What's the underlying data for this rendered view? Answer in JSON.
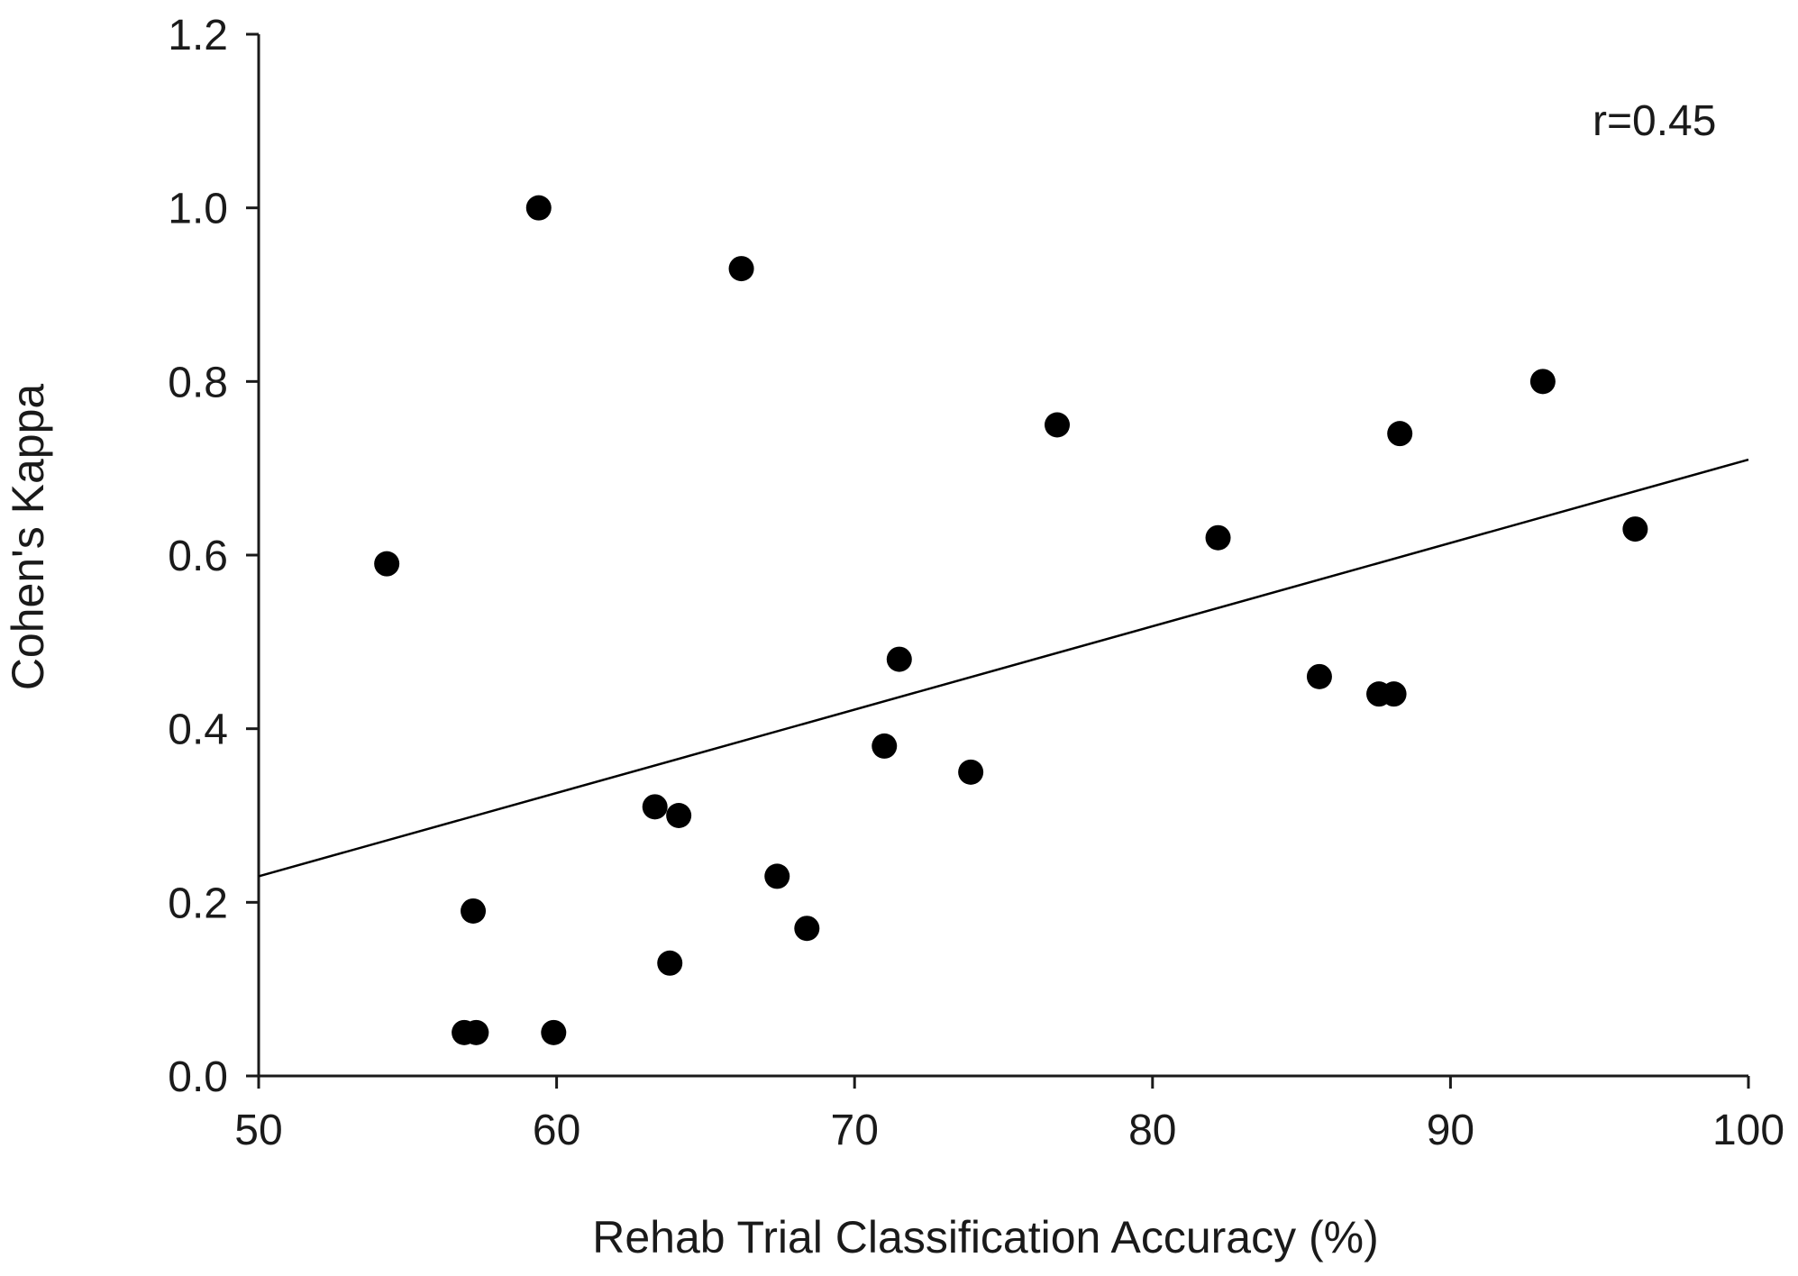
{
  "chart_data": {
    "type": "scatter",
    "title": "",
    "xlabel": "Rehab Trial Classification Accuracy (%)",
    "ylabel": "Cohen's Kappa",
    "xlim": [
      50,
      100
    ],
    "ylim": [
      0,
      1.2
    ],
    "x_ticks": [
      "50",
      "60",
      "70",
      "80",
      "90",
      "100"
    ],
    "y_ticks": [
      "0.0",
      "0.2",
      "0.4",
      "0.6",
      "0.8",
      "1.0",
      "1.2"
    ],
    "grid": false,
    "legend": "none",
    "annotation": "r=0.45",
    "marker_color": "#000000",
    "series": [
      {
        "points": [
          {
            "x": 54.3,
            "y": 0.59
          },
          {
            "x": 56.9,
            "y": 0.05
          },
          {
            "x": 57.3,
            "y": 0.05
          },
          {
            "x": 57.2,
            "y": 0.19
          },
          {
            "x": 59.4,
            "y": 1.0
          },
          {
            "x": 59.9,
            "y": 0.05
          },
          {
            "x": 63.3,
            "y": 0.31
          },
          {
            "x": 63.8,
            "y": 0.13
          },
          {
            "x": 64.1,
            "y": 0.3
          },
          {
            "x": 66.2,
            "y": 0.93
          },
          {
            "x": 67.4,
            "y": 0.23
          },
          {
            "x": 68.4,
            "y": 0.17
          },
          {
            "x": 71.0,
            "y": 0.38
          },
          {
            "x": 71.5,
            "y": 0.48
          },
          {
            "x": 73.9,
            "y": 0.35
          },
          {
            "x": 76.8,
            "y": 0.75
          },
          {
            "x": 82.2,
            "y": 0.62
          },
          {
            "x": 85.6,
            "y": 0.46
          },
          {
            "x": 87.6,
            "y": 0.44
          },
          {
            "x": 88.1,
            "y": 0.44
          },
          {
            "x": 88.3,
            "y": 0.74
          },
          {
            "x": 93.1,
            "y": 0.8
          },
          {
            "x": 96.2,
            "y": 0.63
          }
        ]
      }
    ],
    "trendline": {
      "x": [
        50,
        100
      ],
      "y": [
        0.23,
        0.71
      ],
      "color": "#000000"
    }
  }
}
